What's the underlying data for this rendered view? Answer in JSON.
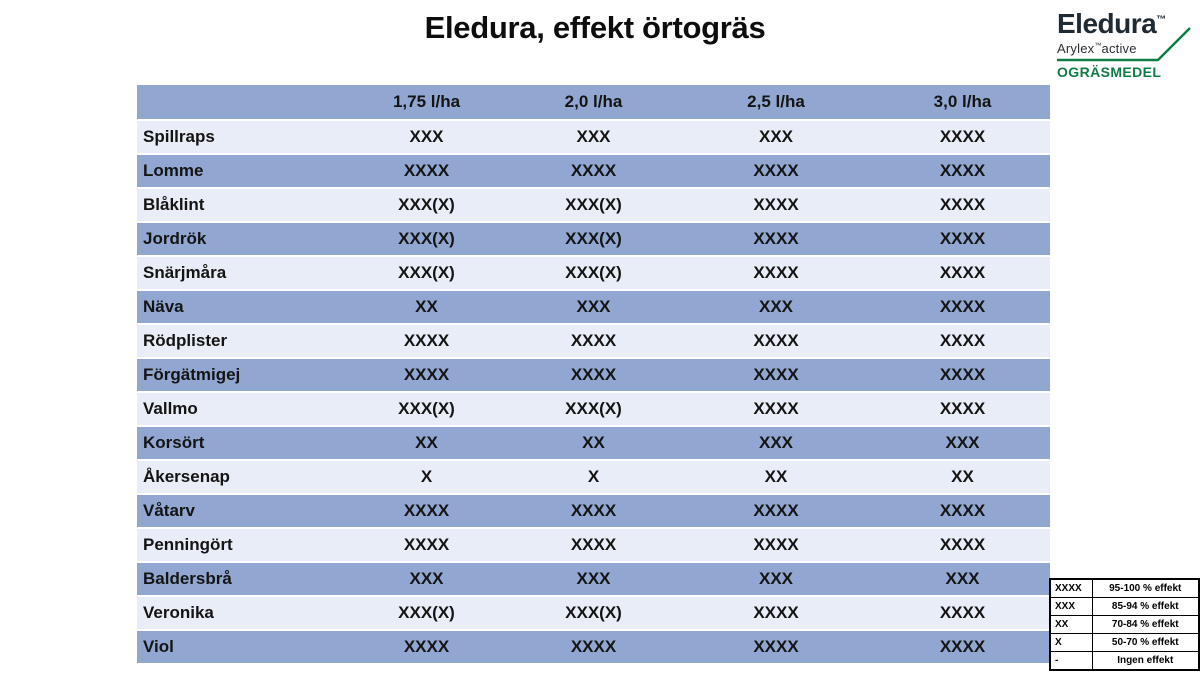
{
  "slide": {
    "title": "Eledura, effekt örtogräs"
  },
  "logo": {
    "brand": "Eledura",
    "brand_tm": "™",
    "subbrand": "Arylex",
    "subbrand_tm": "™",
    "subbrand_suffix": "active",
    "category": "OGRÄSMEDEL"
  },
  "colors": {
    "row_blue": "#91a7d1",
    "row_light": "#e9edf7",
    "brand_green": "#0e7c45",
    "brand_dark": "#1f2a33"
  },
  "table": {
    "columns": [
      "",
      "1,75 l/ha",
      "2,0 l/ha",
      "2,5 l/ha",
      "3,0 l/ha"
    ],
    "rows": [
      {
        "label": "Spillraps",
        "values": [
          "XXX",
          "XXX",
          "XXX",
          "XXXX"
        ]
      },
      {
        "label": "Lomme",
        "values": [
          "XXXX",
          "XXXX",
          "XXXX",
          "XXXX"
        ]
      },
      {
        "label": "Blåklint",
        "values": [
          "XXX(X)",
          "XXX(X)",
          "XXXX",
          "XXXX"
        ]
      },
      {
        "label": "Jordrök",
        "values": [
          "XXX(X)",
          "XXX(X)",
          "XXXX",
          "XXXX"
        ]
      },
      {
        "label": "Snärjmåra",
        "values": [
          "XXX(X)",
          "XXX(X)",
          "XXXX",
          "XXXX"
        ]
      },
      {
        "label": "Näva",
        "values": [
          "XX",
          "XXX",
          "XXX",
          "XXXX"
        ]
      },
      {
        "label": "Rödplister",
        "values": [
          "XXXX",
          "XXXX",
          "XXXX",
          "XXXX"
        ]
      },
      {
        "label": "Förgätmigej",
        "values": [
          "XXXX",
          "XXXX",
          "XXXX",
          "XXXX"
        ]
      },
      {
        "label": "Vallmo",
        "values": [
          "XXX(X)",
          "XXX(X)",
          "XXXX",
          "XXXX"
        ]
      },
      {
        "label": "Korsört",
        "values": [
          "XX",
          "XX",
          "XXX",
          "XXX"
        ]
      },
      {
        "label": "Åkersenap",
        "values": [
          "X",
          "X",
          "XX",
          "XX"
        ]
      },
      {
        "label": "Våtarv",
        "values": [
          "XXXX",
          "XXXX",
          "XXXX",
          "XXXX"
        ]
      },
      {
        "label": "Penningört",
        "values": [
          "XXXX",
          "XXXX",
          "XXXX",
          "XXXX"
        ]
      },
      {
        "label": "Baldersbrå",
        "values": [
          "XXX",
          "XXX",
          "XXX",
          "XXX"
        ]
      },
      {
        "label": "Veronika",
        "values": [
          "XXX(X)",
          "XXX(X)",
          "XXXX",
          "XXXX"
        ]
      },
      {
        "label": "Viol",
        "values": [
          "XXXX",
          "XXXX",
          "XXXX",
          "XXXX"
        ]
      }
    ]
  },
  "legend": {
    "rows": [
      {
        "symbol": "XXXX",
        "label": "95-100 % effekt"
      },
      {
        "symbol": "XXX",
        "label": "85-94 % effekt"
      },
      {
        "symbol": "XX",
        "label": "70-84 % effekt"
      },
      {
        "symbol": "X",
        "label": "50-70 % effekt"
      },
      {
        "symbol": "-",
        "label": "Ingen effekt"
      }
    ]
  }
}
